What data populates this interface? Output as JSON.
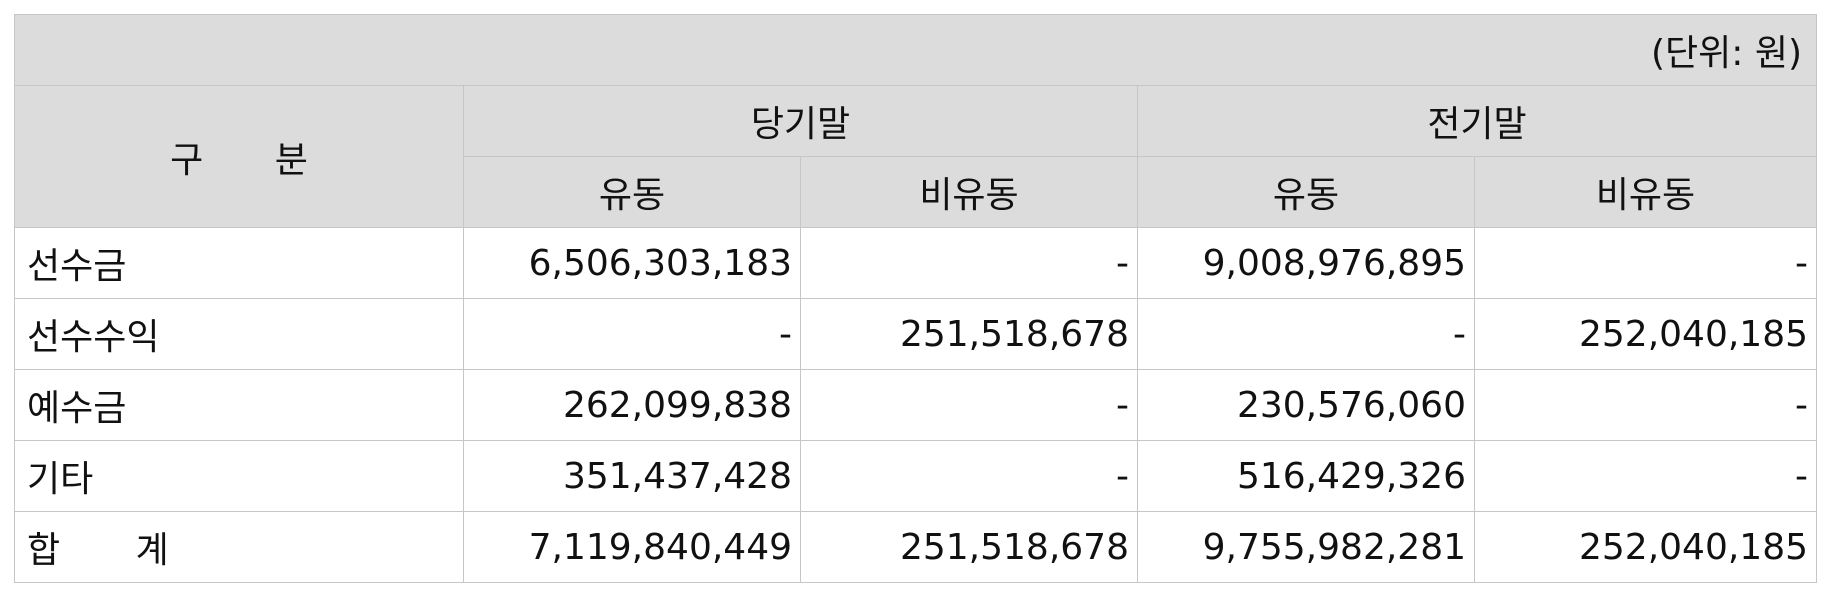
{
  "unit_label": "(단위: 원)",
  "header": {
    "category": "구 분",
    "period_current": "당기말",
    "period_prior": "전기말",
    "current": "유동",
    "non_current": "비유동"
  },
  "rows": [
    {
      "label": "선수금",
      "cur_current": "6,506,303,183",
      "cur_noncurrent": "-",
      "prior_current": "9,008,976,895",
      "prior_noncurrent": "-"
    },
    {
      "label": "선수수익",
      "cur_current": "-",
      "cur_noncurrent": "251,518,678",
      "prior_current": "-",
      "prior_noncurrent": "252,040,185"
    },
    {
      "label": "예수금",
      "cur_current": "262,099,838",
      "cur_noncurrent": "-",
      "prior_current": "230,576,060",
      "prior_noncurrent": "-"
    },
    {
      "label": "기타",
      "cur_current": "351,437,428",
      "cur_noncurrent": "-",
      "prior_current": "516,429,326",
      "prior_noncurrent": "-"
    },
    {
      "label": "합 계",
      "cur_current": "7,119,840,449",
      "cur_noncurrent": "251,518,678",
      "prior_current": "9,755,982,281",
      "prior_noncurrent": "252,040,185"
    }
  ]
}
